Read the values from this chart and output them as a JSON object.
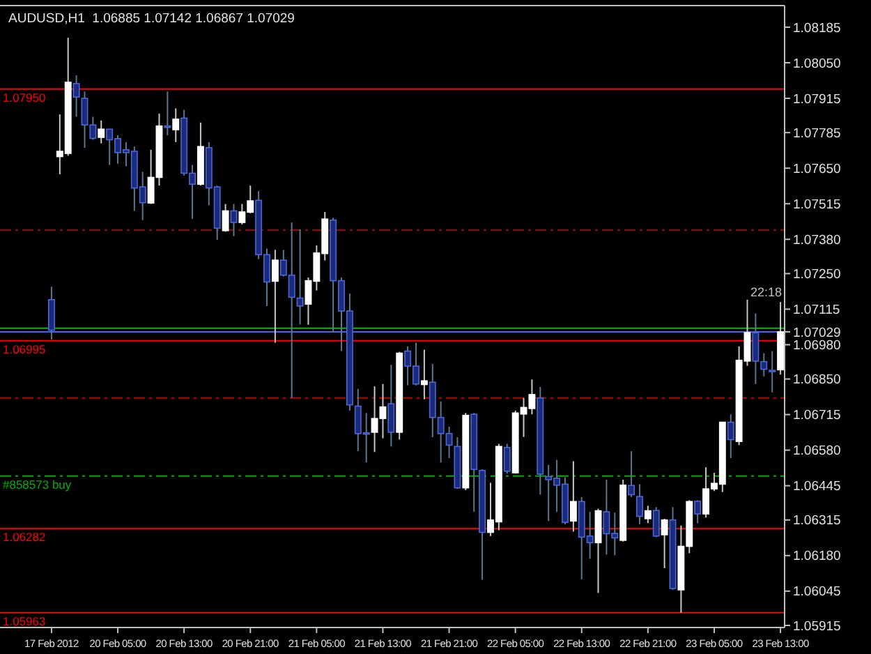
{
  "chart_data": {
    "type": "candlestick",
    "title": "AUDUSD,H1  1.06885 1.07142 1.06867 1.07029",
    "categories": [
      "17 Feb 2012",
      null,
      null,
      null,
      null,
      null,
      null,
      null,
      "20 Feb 05:00",
      null,
      null,
      null,
      null,
      null,
      null,
      null,
      "20 Feb 13:00",
      null,
      null,
      null,
      null,
      null,
      null,
      null,
      "20 Feb 21:00",
      null,
      null,
      null,
      null,
      null,
      null,
      null,
      "21 Feb 05:00",
      null,
      null,
      null,
      null,
      null,
      null,
      null,
      "21 Feb 13:00",
      null,
      null,
      null,
      null,
      null,
      null,
      null,
      "21 Feb 21:00",
      null,
      null,
      null,
      null,
      null,
      null,
      null,
      "22 Feb 05:00",
      null,
      null,
      null,
      null,
      null,
      null,
      null,
      "22 Feb 13:00",
      null,
      null,
      null,
      null,
      null,
      null,
      null,
      "22 Feb 21:00",
      null,
      null,
      null,
      null,
      null,
      null,
      null,
      "23 Feb 05:00",
      null,
      null,
      null,
      null,
      null,
      null,
      null,
      "23 Feb 13:00"
    ],
    "ohlc": [
      [
        1.07151,
        1.072,
        1.07,
        1.07035
      ],
      [
        1.07694,
        1.07854,
        1.07627,
        1.07714
      ],
      [
        1.07706,
        1.08145,
        1.07697,
        1.07976
      ],
      [
        1.07971,
        1.08002,
        1.07845,
        1.0792
      ],
      [
        1.07915,
        1.07941,
        1.07727,
        1.07814
      ],
      [
        1.07814,
        1.07845,
        1.07758,
        1.07763
      ],
      [
        1.07767,
        1.07831,
        1.07744,
        1.07798
      ],
      [
        1.07798,
        1.07798,
        1.07662,
        1.07758
      ],
      [
        1.07762,
        1.07775,
        1.07667,
        1.07709
      ],
      [
        1.0772,
        1.07749,
        1.07657,
        1.07709
      ],
      [
        1.07714,
        1.07732,
        1.07488,
        1.07575
      ],
      [
        1.07579,
        1.07636,
        1.07453,
        1.07519
      ],
      [
        1.07518,
        1.0772,
        1.07514,
        1.07615
      ],
      [
        1.07615,
        1.07857,
        1.07584,
        1.0781
      ],
      [
        1.0781,
        1.07941,
        1.07775,
        1.07805
      ],
      [
        1.07796,
        1.07877,
        1.07749,
        1.07836
      ],
      [
        1.0784,
        1.07871,
        1.07622,
        1.07631
      ],
      [
        1.07631,
        1.07662,
        1.07458,
        1.07589
      ],
      [
        1.07589,
        1.07823,
        1.07584,
        1.07732
      ],
      [
        1.07728,
        1.07749,
        1.07509,
        1.07575
      ],
      [
        1.07579,
        1.07584,
        1.07378,
        1.07422
      ],
      [
        1.07413,
        1.07514,
        1.07409,
        1.07488
      ],
      [
        1.07488,
        1.07514,
        1.07392,
        1.07444
      ],
      [
        1.07444,
        1.07514,
        1.07436,
        1.07484
      ],
      [
        1.07483,
        1.07584,
        1.07479,
        1.07526
      ],
      [
        1.07528,
        1.07563,
        1.07305,
        1.07322
      ],
      [
        1.07322,
        1.07345,
        1.07127,
        1.07218
      ],
      [
        1.07221,
        1.0734,
        1.06988,
        1.07301
      ],
      [
        1.07301,
        1.0734,
        1.07239,
        1.07244
      ],
      [
        1.07244,
        1.07444,
        1.06778,
        1.0716
      ],
      [
        1.07157,
        1.07418,
        1.07057,
        1.07127
      ],
      [
        1.07134,
        1.07235,
        1.07056,
        1.07223
      ],
      [
        1.07221,
        1.07357,
        1.07186,
        1.07328
      ],
      [
        1.07326,
        1.07484,
        1.073,
        1.07457
      ],
      [
        1.07453,
        1.07462,
        1.07026,
        1.07223
      ],
      [
        1.07223,
        1.07235,
        1.06956,
        1.07108
      ],
      [
        1.07108,
        1.07174,
        1.0673,
        1.06752
      ],
      [
        1.06747,
        1.06812,
        1.06576,
        1.06643
      ],
      [
        1.06646,
        1.06721,
        1.06533,
        1.06643
      ],
      [
        1.06648,
        1.06822,
        1.06573,
        1.067
      ],
      [
        1.067,
        1.06831,
        1.06625,
        1.06744
      ],
      [
        1.06756,
        1.06904,
        1.06594,
        1.06648
      ],
      [
        1.06648,
        1.06953,
        1.0662,
        1.06948
      ],
      [
        1.06956,
        1.06974,
        1.06826,
        1.06899
      ],
      [
        1.06899,
        1.06988,
        1.06826,
        1.06831
      ],
      [
        1.06829,
        1.06961,
        1.06773,
        1.06843
      ],
      [
        1.06838,
        1.06907,
        1.06629,
        1.06704
      ],
      [
        1.06704,
        1.06765,
        1.06533,
        1.06643
      ],
      [
        1.06643,
        1.06669,
        1.0655,
        1.06599
      ],
      [
        1.06594,
        1.06629,
        1.06433,
        1.06437
      ],
      [
        1.06437,
        1.06721,
        1.06428,
        1.06712
      ],
      [
        1.06716,
        1.06721,
        1.06346,
        1.06507
      ],
      [
        1.06503,
        1.06507,
        1.06088,
        1.06268
      ],
      [
        1.06268,
        1.06456,
        1.06254,
        1.06315
      ],
      [
        1.06308,
        1.06604,
        1.06276,
        1.06594
      ],
      [
        1.0659,
        1.06604,
        1.06491,
        1.065
      ],
      [
        1.06494,
        1.0673,
        1.06491,
        1.06721
      ],
      [
        1.06717,
        1.06778,
        1.0663,
        1.06742
      ],
      [
        1.06738,
        1.06848,
        1.06716,
        1.06791
      ],
      [
        1.06778,
        1.0682,
        1.06411,
        1.06489
      ],
      [
        1.0648,
        1.06524,
        1.06311,
        1.06468
      ],
      [
        1.06473,
        1.06543,
        1.06346,
        1.06447
      ],
      [
        1.06451,
        1.06477,
        1.06299,
        1.06306
      ],
      [
        1.06311,
        1.06538,
        1.06271,
        1.06385
      ],
      [
        1.06385,
        1.06402,
        1.0609,
        1.0625
      ],
      [
        1.06254,
        1.06346,
        1.06168,
        1.06229
      ],
      [
        1.06229,
        1.06358,
        1.06038,
        1.0635
      ],
      [
        1.06346,
        1.06468,
        1.06184,
        1.06263
      ],
      [
        1.06264,
        1.06343,
        1.06181,
        1.06247
      ],
      [
        1.06238,
        1.06468,
        1.06233,
        1.06447
      ],
      [
        1.06446,
        1.06576,
        1.06402,
        1.06411
      ],
      [
        1.06404,
        1.06451,
        1.06299,
        1.06329
      ],
      [
        1.0632,
        1.06369,
        1.06303,
        1.0635
      ],
      [
        1.06351,
        1.06364,
        1.0625,
        1.06254
      ],
      [
        1.06259,
        1.0632,
        1.06132,
        1.06315
      ],
      [
        1.06315,
        1.06364,
        1.0605,
        1.06055
      ],
      [
        1.0605,
        1.06294,
        1.05963,
        1.06215
      ],
      [
        1.06215,
        1.0639,
        1.06189,
        1.06385
      ],
      [
        1.06386,
        1.0639,
        1.06303,
        1.06338
      ],
      [
        1.06338,
        1.06515,
        1.06324,
        1.06433
      ],
      [
        1.06433,
        1.06494,
        1.06425,
        1.06454
      ],
      [
        1.06451,
        1.06686,
        1.06421,
        1.06686
      ],
      [
        1.06686,
        1.06716,
        1.0655,
        1.0662
      ],
      [
        1.06613,
        1.06974,
        1.06599,
        1.06921
      ],
      [
        1.06918,
        1.07151,
        1.069,
        1.07026
      ],
      [
        1.07026,
        1.07099,
        1.06831,
        1.06918
      ],
      [
        1.06916,
        1.06948,
        1.0686,
        1.06887
      ],
      [
        1.06883,
        1.06956,
        1.06799,
        1.0688
      ],
      [
        1.06885,
        1.07142,
        1.06867,
        1.07029
      ]
    ],
    "ylim": [
      1.05907,
      1.08267
    ],
    "yticks": [
      {
        "value": 1.08185,
        "label": "1.08185"
      },
      {
        "value": 1.0805,
        "label": "1.08050"
      },
      {
        "value": 1.07915,
        "label": "1.07915"
      },
      {
        "value": 1.07785,
        "label": "1.07785"
      },
      {
        "value": 1.0765,
        "label": "1.07650"
      },
      {
        "value": 1.07515,
        "label": "1.07515"
      },
      {
        "value": 1.0738,
        "label": "1.07380"
      },
      {
        "value": 1.0725,
        "label": "1.07250"
      },
      {
        "value": 1.07115,
        "label": "1.07115"
      },
      {
        "value": 1.07029,
        "label": "1.07029"
      },
      {
        "value": 1.0698,
        "label": "1.06980"
      },
      {
        "value": 1.0685,
        "label": "1.06850"
      },
      {
        "value": 1.06715,
        "label": "1.06715"
      },
      {
        "value": 1.0658,
        "label": "1.06580"
      },
      {
        "value": 1.06445,
        "label": "1.06445"
      },
      {
        "value": 1.06315,
        "label": "1.06315"
      },
      {
        "value": 1.0618,
        "label": "1.06180"
      },
      {
        "value": 1.06045,
        "label": "1.06045"
      },
      {
        "value": 1.05915,
        "label": "1.05915"
      }
    ],
    "ref_lines": [
      {
        "axis": "y",
        "value": 1.0795,
        "label": "1.07950",
        "color": "#ff0000",
        "line_style": "solid"
      },
      {
        "axis": "y",
        "value": 1.07415,
        "label": null,
        "color": "#a00000",
        "line_style": "dashed"
      },
      {
        "axis": "y",
        "value": 1.07043,
        "label": null,
        "color": "#00c000",
        "line_style": "solid"
      },
      {
        "axis": "y",
        "value": 1.07029,
        "label": null,
        "color": "#4060ff",
        "line_style": "solid"
      },
      {
        "axis": "y",
        "value": 1.06995,
        "label": "1.06995",
        "color": "#ff0000",
        "line_style": "solid"
      },
      {
        "axis": "y",
        "value": 1.06778,
        "label": null,
        "color": "#c00000",
        "line_style": "dashed"
      },
      {
        "axis": "y",
        "value": 1.06482,
        "label": "#858573 buy",
        "color": "#00b000",
        "line_style": "dashed"
      },
      {
        "axis": "y",
        "value": 1.06282,
        "label": "1.06282",
        "color": "#ff0000",
        "line_style": "solid"
      },
      {
        "axis": "y",
        "value": 1.05963,
        "label": "1.05963",
        "color": "#ff0000",
        "line_style": "solid"
      }
    ],
    "annotations": [
      "22:18"
    ],
    "grid": false
  }
}
